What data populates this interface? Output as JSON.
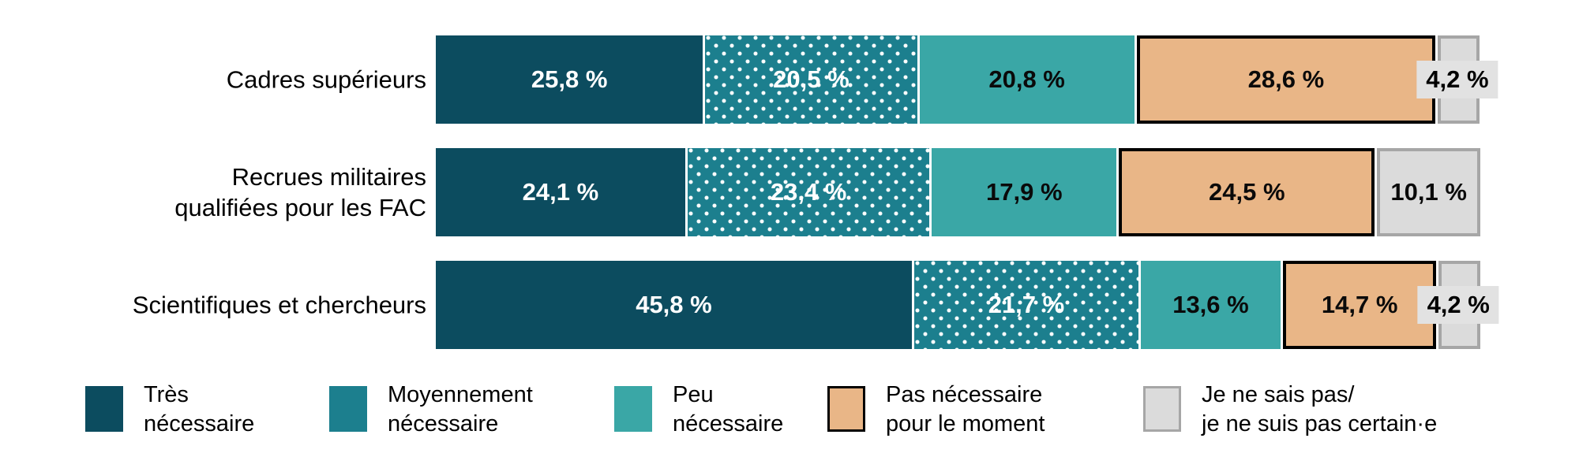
{
  "chart_data": {
    "type": "bar",
    "orientation": "horizontal",
    "stacked": true,
    "percent_stacked": true,
    "unit": "%",
    "xlim": [
      0,
      100
    ],
    "grid": false,
    "legend_position": "bottom",
    "categories": [
      "Cadres supérieurs",
      "Recrues militaires qualifiées pour les FAC",
      "Scientifiques et chercheurs"
    ],
    "category_lines": [
      [
        "Cadres supérieurs"
      ],
      [
        "Recrues militaires",
        "qualifiées pour les FAC"
      ],
      [
        "Scientifiques et chercheurs"
      ]
    ],
    "series": [
      {
        "name": "Très nécessaire",
        "values": [
          25.8,
          24.1,
          45.8
        ],
        "labels": [
          "25,8 %",
          "24,1 %",
          "45,8 %"
        ],
        "color": "#0C4C5F",
        "pattern": "solid",
        "border_color": null,
        "text_color": "#FFFFFF"
      },
      {
        "name": "Moyennement nécessaire",
        "values": [
          20.5,
          23.4,
          21.7
        ],
        "labels": [
          "20,5 %",
          "23,4 %",
          "21,7 %"
        ],
        "color": "#1C7F8E",
        "pattern": "dots",
        "border_color": null,
        "text_color": "#FFFFFF"
      },
      {
        "name": "Peu nécessaire",
        "values": [
          20.8,
          17.9,
          13.6
        ],
        "labels": [
          "20,8 %",
          "17,9 %",
          "13,6 %"
        ],
        "color": "#3AA7A6",
        "pattern": "solid",
        "border_color": null,
        "text_color": "#0A0A0A"
      },
      {
        "name": "Pas nécessaire pour le moment",
        "values": [
          28.6,
          24.5,
          14.7
        ],
        "labels": [
          "28,6 %",
          "24,5 %",
          "14,7 %"
        ],
        "color": "#E9B687",
        "pattern": "solid",
        "border_color": "#000000",
        "text_color": "#0A0A0A"
      },
      {
        "name": "Je ne sais pas/je ne suis pas certain·e",
        "values": [
          4.2,
          10.1,
          4.2
        ],
        "labels": [
          "4,2 %",
          "10,1 %",
          "4,2 %"
        ],
        "color": "#DBDBDB",
        "pattern": "solid",
        "border_color": "#A6A6A6",
        "text_color": "#0A0A0A"
      }
    ],
    "callout_label_background": "#E2E2E2",
    "callout_threshold_percent": 6
  },
  "legend": {
    "items": [
      {
        "lines": [
          "Très",
          "nécessaire"
        ],
        "series_index": 0
      },
      {
        "lines": [
          "Moyennement",
          "nécessaire"
        ],
        "series_index": 1
      },
      {
        "lines": [
          "Peu",
          "nécessaire"
        ],
        "series_index": 2
      },
      {
        "lines": [
          "Pas nécessaire",
          "pour le moment"
        ],
        "series_index": 3
      },
      {
        "lines": [
          "Je ne sais pas/",
          "je ne suis pas certain·e"
        ],
        "series_index": 4
      }
    ]
  }
}
